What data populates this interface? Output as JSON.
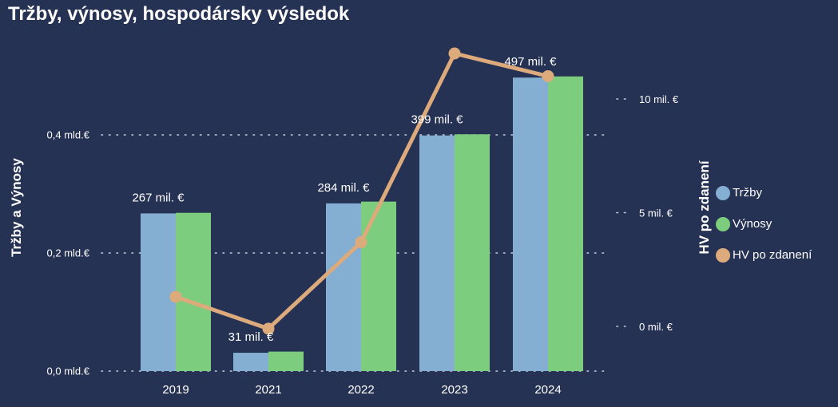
{
  "title": "Tržby, výnosy, hospodársky výsledok",
  "chart_data": {
    "type": "bar",
    "combo": "bar+line",
    "title": "Tržby, výnosy, hospodársky výsledok",
    "categories": [
      "2019",
      "2021",
      "2022",
      "2023",
      "2024"
    ],
    "series": [
      {
        "name": "Tržby",
        "type": "bar",
        "axis": "left",
        "color": "#84afd2",
        "values": [
          0.267,
          0.031,
          0.284,
          0.399,
          0.497
        ],
        "labels": [
          "267 mil. €",
          "31 mil. €",
          "284 mil. €",
          "399 mil. €",
          "497 mil. €"
        ]
      },
      {
        "name": "Výnosy",
        "type": "bar",
        "axis": "left",
        "color": "#7dcd7e",
        "values": [
          0.268,
          0.033,
          0.287,
          0.401,
          0.499
        ]
      },
      {
        "name": "HV po zdanení",
        "type": "line",
        "axis": "right",
        "color": "#ddaa7c",
        "values": [
          1.3,
          -0.1,
          3.7,
          12.0,
          11.0
        ]
      }
    ],
    "y_left": {
      "label": "Tržby a Výnosy",
      "range": [
        0,
        0.6
      ],
      "ticks": [
        0,
        0.2,
        0.4
      ],
      "tick_labels": [
        "0,0 mld.€",
        "0,2 mld.€",
        "0,4 mld.€"
      ]
    },
    "y_right": {
      "label": "HV po zdanení",
      "range": [
        -2,
        12.5
      ],
      "ticks": [
        0,
        5,
        10
      ],
      "tick_labels": [
        "0 mil. €",
        "5 mil. €",
        "10 mil. €"
      ]
    },
    "grid": "dotted",
    "legend": "right"
  },
  "colors": {
    "background": "#263253",
    "text": "#ffffff",
    "grid": "#c8cfe0"
  }
}
